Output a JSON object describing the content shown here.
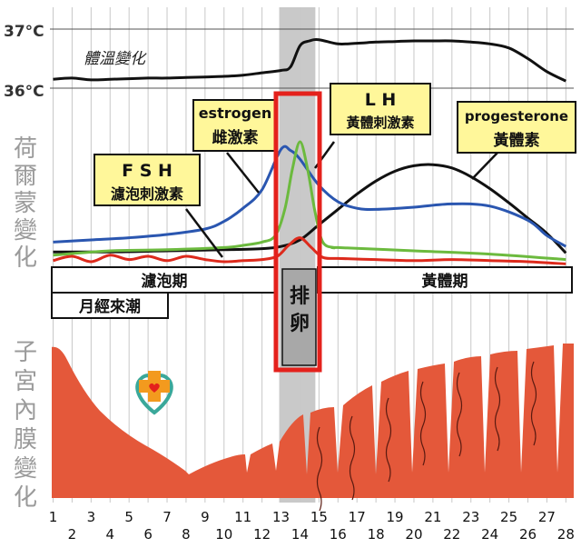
{
  "chart_data": {
    "type": "line",
    "x_ticks": [
      1,
      2,
      3,
      4,
      5,
      6,
      7,
      8,
      9,
      10,
      11,
      12,
      13,
      14,
      15,
      16,
      17,
      18,
      19,
      20,
      21,
      22,
      23,
      24,
      25,
      26,
      27,
      28
    ],
    "y_temp_ticks": [
      "37°C",
      "36°C"
    ],
    "temperature": {
      "label": "體溫變化",
      "x": [
        1,
        2,
        3,
        4,
        5,
        6,
        7,
        8,
        9,
        10,
        11,
        12,
        13,
        13.5,
        14,
        14.5,
        15,
        16,
        17,
        18,
        19,
        20,
        21,
        22,
        23,
        24,
        25,
        26,
        27,
        28
      ],
      "values": [
        36.15,
        36.17,
        36.14,
        36.15,
        36.16,
        36.17,
        36.17,
        36.18,
        36.19,
        36.2,
        36.22,
        36.26,
        36.3,
        36.36,
        36.72,
        36.8,
        36.82,
        36.75,
        36.76,
        36.78,
        36.79,
        36.8,
        36.8,
        36.8,
        36.78,
        36.75,
        36.68,
        36.5,
        36.28,
        36.12
      ]
    },
    "hormones_section_label": "荷爾蒙變化",
    "series": [
      {
        "name": "estrogen 雌激素",
        "color": "#2a56b0",
        "x": [
          1,
          3,
          5,
          7,
          9,
          10,
          11,
          12,
          13,
          13.5,
          14,
          15,
          16,
          17,
          18,
          20,
          22,
          24,
          26,
          27,
          28
        ],
        "values": [
          0.08,
          0.1,
          0.12,
          0.15,
          0.2,
          0.27,
          0.39,
          0.56,
          0.93,
          0.92,
          0.84,
          0.6,
          0.45,
          0.39,
          0.38,
          0.4,
          0.43,
          0.41,
          0.28,
          0.14,
          0.04
        ]
      },
      {
        "name": "L H 黃體刺激素",
        "color": "#6cba3e",
        "x": [
          1,
          4,
          7,
          10,
          11,
          12,
          12.7,
          13.2,
          13.6,
          14,
          14.4,
          14.8,
          15.2,
          15.8,
          16,
          20,
          24,
          28
        ],
        "values": [
          -0.04,
          0.0,
          0.01,
          0.03,
          0.05,
          0.08,
          0.14,
          0.38,
          0.75,
          1.0,
          0.75,
          0.35,
          0.08,
          0.03,
          0.03,
          0.0,
          -0.03,
          -0.08
        ]
      },
      {
        "name": "F S H 濾泡刺激素",
        "color": "#dd2a1c",
        "x": [
          1,
          2,
          3,
          4,
          5,
          6,
          7,
          8,
          9,
          10,
          11,
          12,
          12.8,
          13.4,
          14,
          14.6,
          15.2,
          16,
          18,
          20,
          22,
          24,
          26,
          28
        ],
        "values": [
          -0.09,
          -0.05,
          -0.1,
          -0.04,
          -0.08,
          -0.05,
          -0.09,
          -0.05,
          -0.08,
          -0.1,
          -0.09,
          -0.08,
          -0.05,
          0.05,
          0.12,
          0.03,
          -0.06,
          -0.07,
          -0.08,
          -0.09,
          -0.08,
          -0.09,
          -0.1,
          -0.12
        ]
      },
      {
        "name": "progesterone 黃體素",
        "color": "#111111",
        "x": [
          1,
          4,
          7,
          10,
          12,
          13,
          14,
          15,
          16,
          17,
          18,
          19,
          20,
          21,
          22,
          23,
          24,
          25,
          26,
          27,
          28
        ],
        "values": [
          -0.01,
          -0.01,
          0.0,
          0.01,
          0.02,
          0.04,
          0.1,
          0.24,
          0.38,
          0.52,
          0.64,
          0.73,
          0.78,
          0.79,
          0.76,
          0.68,
          0.57,
          0.44,
          0.3,
          0.16,
          -0.02
        ]
      }
    ],
    "callouts": [
      {
        "line1": "F S H",
        "line2": "濾泡刺激素"
      },
      {
        "line1": "estrogen",
        "line2": "雌激素"
      },
      {
        "line1": "L H",
        "line2": "黃體刺激素"
      },
      {
        "line1": "progesterone",
        "line2": "黃體素"
      }
    ],
    "phases": {
      "follicular": "濾泡期",
      "ovulation": "排卵",
      "luteal": "黃體期",
      "menstruation": "月經來潮"
    },
    "endometrium_section_label": "子宮內膜變化",
    "ovulation_days": [
      13,
      15
    ],
    "colors": {
      "endometrium": "#e4583a",
      "endometrium_shadow": "#8a1e14",
      "callout_fill": "#fff79a",
      "ovulation_band": "#c9c9c9",
      "ovulation_box": "#e4211c",
      "section_label": "#9a9a9a"
    }
  }
}
